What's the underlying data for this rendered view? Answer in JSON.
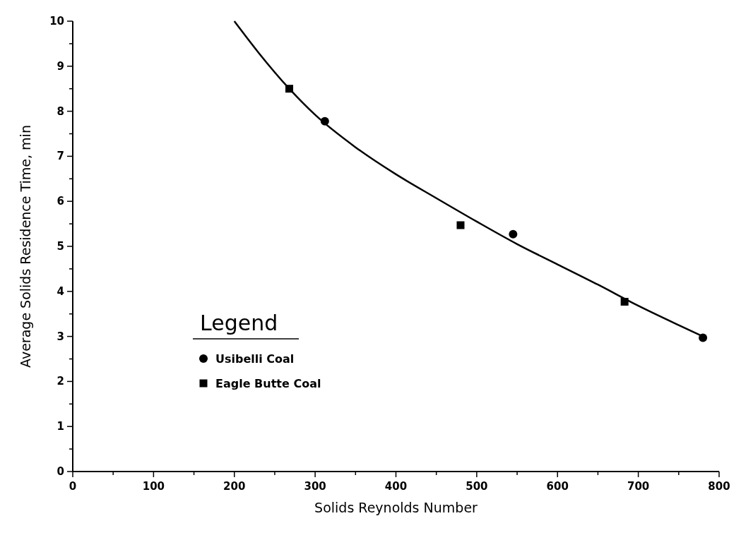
{
  "chart_data": {
    "type": "scatter",
    "xlabel": "Solids Reynolds Number",
    "ylabel": "Average Solids Residence Time, min",
    "legend_title": "Legend",
    "legend": "left",
    "xlim": [
      0,
      800
    ],
    "ylim": [
      0,
      10
    ],
    "xticks": [
      0,
      {
        "value": 50,
        "label": null
      },
      100,
      {
        "value": 150,
        "label": null
      },
      200,
      {
        "value": 250,
        "label": null
      },
      300,
      {
        "value": 350,
        "label": null
      },
      400,
      {
        "value": 450,
        "label": null
      },
      500,
      {
        "value": 550,
        "label": null
      },
      600,
      {
        "value": 650,
        "label": null
      },
      700,
      {
        "value": 750,
        "label": null
      },
      800
    ],
    "yticks": [
      0,
      {
        "value": 0.5,
        "label": null
      },
      1,
      {
        "value": 1.5,
        "label": null
      },
      2,
      {
        "value": 2.5,
        "label": null
      },
      3,
      {
        "value": 3.5,
        "label": null
      },
      4,
      {
        "value": 4.5,
        "label": null
      },
      5,
      {
        "value": 5.5,
        "label": null
      },
      6,
      {
        "value": 6.5,
        "label": null
      },
      7,
      {
        "value": 7.5,
        "label": null
      },
      8,
      {
        "value": 8.5,
        "label": null
      },
      9,
      {
        "value": 9.5,
        "label": null
      },
      10
    ],
    "series": [
      {
        "name": "Usibelli Coal",
        "marker": "circle",
        "color": "#000000",
        "x": [
          312,
          545,
          780
        ],
        "values": [
          7.78,
          5.27,
          2.97
        ]
      },
      {
        "name": "Eagle Butte Coal",
        "marker": "square",
        "color": "#000000",
        "x": [
          268,
          480,
          683
        ],
        "values": [
          8.5,
          5.47,
          3.77
        ]
      },
      {
        "type": "line",
        "marker": "none",
        "line_style": "solid",
        "color": "#000000",
        "x": [
          200,
          230,
          268,
          300,
          350,
          400,
          450,
          500,
          550,
          600,
          650,
          700,
          750,
          780
        ],
        "values": [
          10,
          9.3,
          8.5,
          7.92,
          7.2,
          6.6,
          6.07,
          5.55,
          5.05,
          4.6,
          4.15,
          3.68,
          3.25,
          3.0
        ]
      }
    ]
  }
}
